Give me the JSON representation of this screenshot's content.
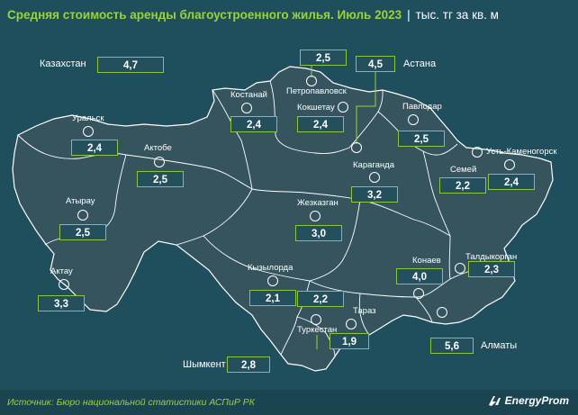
{
  "title": "Средняя стоимость аренды благоустроенного жилья. Июль 2023",
  "unit": "тыс. тг за кв. м",
  "source": "Источник: Бюро национальной статистики АСПиР РК",
  "brand": "EnergyProm",
  "colors": {
    "background": "#1f4f5d",
    "land": "#35545e",
    "border": "#ffffff",
    "accent": "#9bd23c",
    "box_border": "#8cc63f"
  },
  "regions": [
    {
      "id": "kazakhstan",
      "name": "Казахстан",
      "value": "4,7"
    },
    {
      "id": "astana",
      "name": "Астана",
      "value": "4,5"
    },
    {
      "id": "petropavlovsk",
      "name": "Петропавловск",
      "value": "2,5"
    },
    {
      "id": "kostanay",
      "name": "Костанай",
      "value": "2,4"
    },
    {
      "id": "kokshetau",
      "name": "Кокшетау",
      "value": "2,4"
    },
    {
      "id": "pavlodar",
      "name": "Павлодар",
      "value": "2,5"
    },
    {
      "id": "uralsk",
      "name": "Уральск",
      "value": "2,4"
    },
    {
      "id": "aktobe",
      "name": "Актобе",
      "value": "2,5"
    },
    {
      "id": "karaganda",
      "name": "Караганда",
      "value": "3,2"
    },
    {
      "id": "semey",
      "name": "Семей",
      "value": "2,2"
    },
    {
      "id": "ust-kamenogorsk",
      "name": "Усть-Каменогорск",
      "value": "2,4"
    },
    {
      "id": "atyrau",
      "name": "Атырау",
      "value": "2,5"
    },
    {
      "id": "zhezkazgan",
      "name": "Жезказган",
      "value": "3,0"
    },
    {
      "id": "aktau",
      "name": "Актау",
      "value": "3,3"
    },
    {
      "id": "kyzylorda",
      "name": "Кызылорда",
      "value": "2,1"
    },
    {
      "id": "turkestan",
      "name": "Туркестан",
      "value": "2,2"
    },
    {
      "id": "konaev",
      "name": "Конаев",
      "value": "4,0"
    },
    {
      "id": "taldykorgan",
      "name": "Талдыкорган",
      "value": "2,3"
    },
    {
      "id": "taraz",
      "name": "Тараз",
      "value": "1,9"
    },
    {
      "id": "almaty",
      "name": "Алматы",
      "value": "5,6"
    },
    {
      "id": "shymkent",
      "name": "Шымкент",
      "value": "2,8"
    }
  ]
}
